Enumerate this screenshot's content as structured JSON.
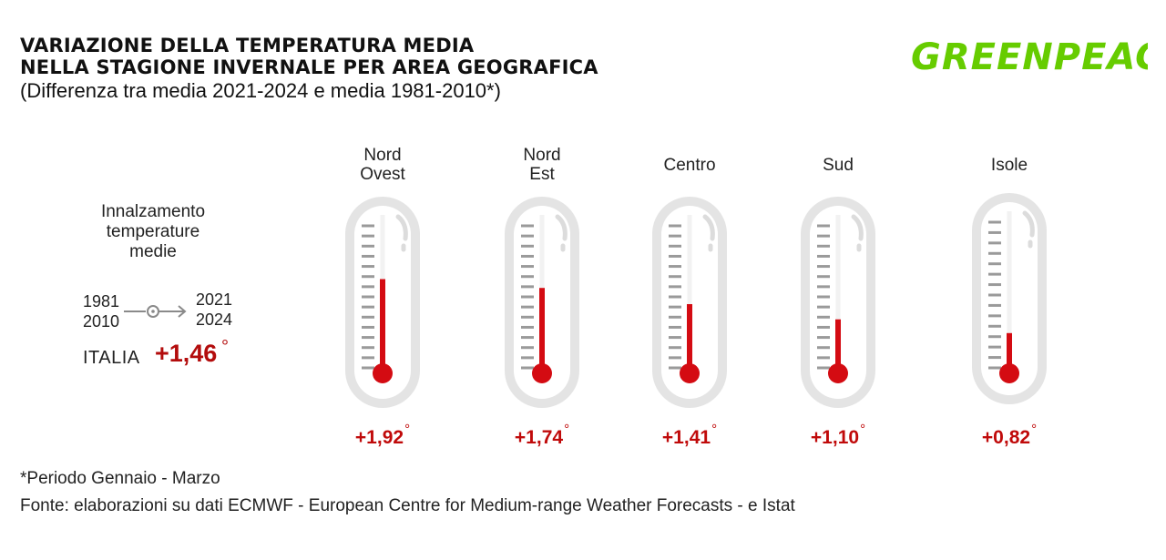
{
  "header": {
    "title_line1": "VARIAZIONE DELLA TEMPERATURA MEDIA",
    "title_line2": "NELLA STAGIONE INVERNALE PER AREA GEOGRAFICA",
    "subtitle": "(Differenza tra media 2021-2024 e media 1981-2010*)",
    "logo_text": "GREENPEACE"
  },
  "legend": {
    "description_lines": [
      "Innalzamento",
      "temperature",
      "medie"
    ],
    "from_period": [
      "1981",
      "2010"
    ],
    "to_period": [
      "2021",
      "2024"
    ],
    "country_label": "ITALIA",
    "country_value": "+1,46",
    "degree_symbol": "°"
  },
  "chart_data": {
    "type": "bar",
    "title": "VARIAZIONE DELLA TEMPERATURA MEDIA NELLA STAGIONE INVERNALE PER AREA GEOGRAFICA",
    "subtitle": "(Differenza tra media 2021-2024 e media 1981-2010*)",
    "categories": [
      [
        "Nord",
        "Ovest"
      ],
      [
        "Nord",
        "Est"
      ],
      [
        "Centro"
      ],
      [
        "Sud"
      ],
      [
        "Isole"
      ]
    ],
    "values": [
      1.92,
      1.74,
      1.41,
      1.1,
      0.82
    ],
    "value_labels": [
      "+1,92",
      "+1,74",
      "+1,41",
      "+1,10",
      "+0,82"
    ],
    "unit": "°",
    "style": "thermometer",
    "colors": {
      "mercury": "#d40b12",
      "value_text": "#c00a0a",
      "thermometer_body": "#e4e4e4",
      "thermometer_inner": "#ffffff",
      "ticks": "#9a9a9a"
    }
  },
  "footer": {
    "footnote": "*Periodo Gennaio - Marzo",
    "source": "Fonte: elaborazioni su dati ECMWF - European Centre for Medium-range Weather Forecasts - e Istat"
  },
  "colors": {
    "logo_green": "#66cc00",
    "highlight_red": "#b30c0c"
  }
}
